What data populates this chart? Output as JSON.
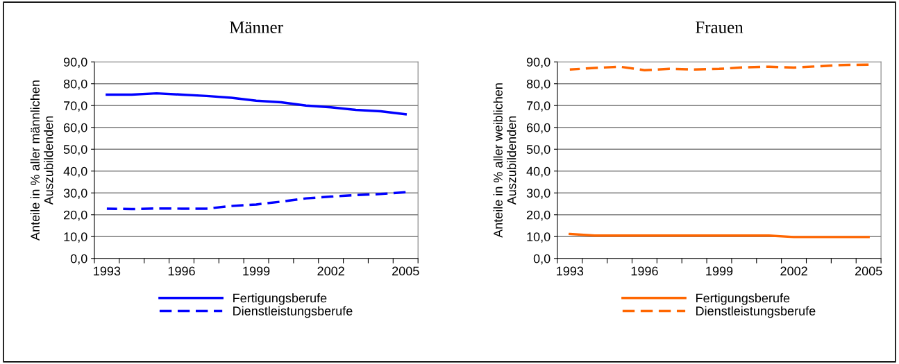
{
  "chart_data": [
    {
      "type": "line",
      "title": "Männer",
      "ylabel": "Anteile in % aller männlichen\nAuszubildenden",
      "categories": [
        "1993",
        null,
        null,
        "1996",
        null,
        null,
        "1999",
        null,
        null,
        "2002",
        null,
        null,
        "2005"
      ],
      "ylim": [
        0,
        90
      ],
      "yticks": [
        {
          "value": 0,
          "label": "0,0"
        },
        {
          "value": 10,
          "label": "10,0"
        },
        {
          "value": 20,
          "label": "20,0"
        },
        {
          "value": 30,
          "label": "30,0"
        },
        {
          "value": 40,
          "label": "40,0"
        },
        {
          "value": 50,
          "label": "50,0"
        },
        {
          "value": 60,
          "label": "60,0"
        },
        {
          "value": 70,
          "label": "70,0"
        },
        {
          "value": 80,
          "label": "80,0"
        },
        {
          "value": 90,
          "label": "90,0"
        }
      ],
      "grid": "y",
      "legend": "bottom",
      "series": [
        {
          "name": "Fertigungsberufe",
          "color": "#0000ff",
          "line_style": "solid",
          "values": [
            75.0,
            75.0,
            75.6,
            75.0,
            74.4,
            73.6,
            72.2,
            71.5,
            70.0,
            69.2,
            68.0,
            67.4,
            66.0
          ]
        },
        {
          "name": "Dienstleistungsberufe",
          "color": "#0000ff",
          "line_style": "dashed",
          "values": [
            22.8,
            22.6,
            22.9,
            22.8,
            22.8,
            24.0,
            24.7,
            26.0,
            27.5,
            28.3,
            29.0,
            29.5,
            30.3
          ]
        }
      ]
    },
    {
      "type": "line",
      "title": "Frauen",
      "ylabel": "Anteile in % aller weiblichen\nAuszubildenden",
      "categories": [
        "1993",
        null,
        null,
        "1996",
        null,
        null,
        "1999",
        null,
        null,
        "2002",
        null,
        null,
        "2005"
      ],
      "ylim": [
        0,
        90
      ],
      "yticks": [
        {
          "value": 0,
          "label": "0,0"
        },
        {
          "value": 10,
          "label": "10,0"
        },
        {
          "value": 20,
          "label": "20,0"
        },
        {
          "value": 30,
          "label": "30,0"
        },
        {
          "value": 40,
          "label": "40,0"
        },
        {
          "value": 50,
          "label": "50,0"
        },
        {
          "value": 60,
          "label": "60,0"
        },
        {
          "value": 70,
          "label": "70,0"
        },
        {
          "value": 80,
          "label": "80,0"
        },
        {
          "value": 90,
          "label": "90,0"
        }
      ],
      "grid": "y",
      "legend": "bottom",
      "series": [
        {
          "name": "Fertigungsberufe",
          "color": "#ff6600",
          "line_style": "solid",
          "values": [
            11.2,
            10.5,
            10.5,
            10.5,
            10.5,
            10.5,
            10.5,
            10.5,
            10.5,
            9.8,
            9.8,
            9.8,
            9.8
          ]
        },
        {
          "name": "Dienstleistungsberufe",
          "color": "#ff6600",
          "line_style": "dashed",
          "values": [
            86.5,
            87.2,
            87.8,
            86.2,
            86.8,
            86.5,
            86.8,
            87.5,
            87.8,
            87.4,
            88.0,
            88.6,
            88.7
          ]
        }
      ]
    }
  ]
}
